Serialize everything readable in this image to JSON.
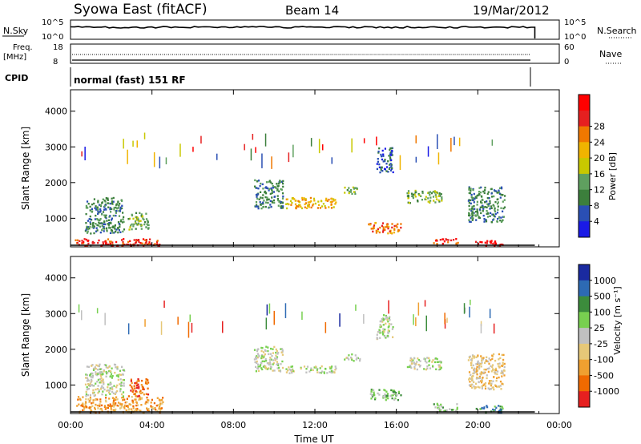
{
  "header": {
    "station": "Syowa East (fitACF)",
    "beam": "Beam 14",
    "date": "19/Mar/2012"
  },
  "top_panels": {
    "nsky_label": "N.Sky",
    "nsearch_label": "N.Search",
    "nsky_ticks": [
      "10^5",
      "10^0"
    ],
    "freq_label": "Freq.",
    "freq_unit": "[MHz]",
    "freq_ticks": [
      "18",
      "8"
    ],
    "nave_label": "Nave",
    "nave_ticks": [
      "60",
      "0"
    ],
    "cpid_label": "CPID",
    "cpid_value": "normal (fast) 151 RF"
  },
  "colors": {
    "power_scale": [
      "#1a1ae6",
      "#2a4fb4",
      "#3c7f3c",
      "#5fa05f",
      "#c8c800",
      "#f0b400",
      "#f07800",
      "#e62020",
      "#ff0000"
    ],
    "velocity_scale": [
      "#1a2aa0",
      "#2d6ab4",
      "#3c8c3c",
      "#78d050",
      "#c0c0c0",
      "#e6c878",
      "#f0a030",
      "#f06a00",
      "#e62020"
    ]
  },
  "chart_data": [
    {
      "type": "heatmap",
      "title": "Power",
      "ylabel": "Slant Range [km]",
      "xlabel": "",
      "x_ticks": [
        "00:00",
        "04:00",
        "08:00",
        "12:00",
        "16:00",
        "20:00",
        "00:00"
      ],
      "y_ticks": [
        1000,
        2000,
        3000,
        4000
      ],
      "ylim": [
        200,
        4600
      ],
      "colorbar": {
        "label": "Power [dB]",
        "unit": "",
        "ticks": [
          4,
          8,
          12,
          16,
          20,
          24,
          28
        ]
      },
      "echo_regions": [
        {
          "t": [
            0.2,
            4.5
          ],
          "r": [
            250,
            450
          ],
          "level": 7
        },
        {
          "t": [
            0.7,
            2.6
          ],
          "r": [
            600,
            1600
          ],
          "level": 2
        },
        {
          "t": [
            2.8,
            3.8
          ],
          "r": [
            700,
            1200
          ],
          "level": 3
        },
        {
          "t": [
            9.0,
            10.4
          ],
          "r": [
            1300,
            2100
          ],
          "level": 2
        },
        {
          "t": [
            10.5,
            13.0
          ],
          "r": [
            1300,
            1600
          ],
          "level": 5
        },
        {
          "t": [
            13.4,
            14.2
          ],
          "r": [
            1700,
            1900
          ],
          "level": 3
        },
        {
          "t": [
            14.6,
            16.2
          ],
          "r": [
            600,
            900
          ],
          "level": 6
        },
        {
          "t": [
            16.5,
            18.2
          ],
          "r": [
            1450,
            1800
          ],
          "level": 3
        },
        {
          "t": [
            17.8,
            19.0
          ],
          "r": [
            300,
            450
          ],
          "level": 7
        },
        {
          "t": [
            19.8,
            21.2
          ],
          "r": [
            250,
            400
          ],
          "level": 8
        },
        {
          "t": [
            19.5,
            21.3
          ],
          "r": [
            900,
            1900
          ],
          "level": 2
        },
        {
          "t": [
            15.0,
            15.8
          ],
          "r": [
            2300,
            3000
          ],
          "level": 1
        }
      ]
    },
    {
      "type": "heatmap",
      "title": "Velocity",
      "ylabel": "Slant Range [km]",
      "xlabel": "Time UT",
      "x_ticks": [
        "00:00",
        "04:00",
        "08:00",
        "12:00",
        "16:00",
        "20:00",
        "00:00"
      ],
      "y_ticks": [
        1000,
        2000,
        3000,
        4000
      ],
      "ylim": [
        200,
        4600
      ],
      "colorbar": {
        "label": "Velocity",
        "unit": "[m s⁻¹]",
        "ticks": [
          1000,
          500,
          100,
          25,
          -25,
          -100,
          -500,
          -1000
        ]
      },
      "echo_regions": [
        {
          "t": [
            0.2,
            4.5
          ],
          "r": [
            250,
            700
          ],
          "level": 6
        },
        {
          "t": [
            0.7,
            2.6
          ],
          "r": [
            700,
            1600
          ],
          "level": 4
        },
        {
          "t": [
            2.8,
            3.8
          ],
          "r": [
            700,
            1200
          ],
          "level": 7
        },
        {
          "t": [
            9.0,
            10.4
          ],
          "r": [
            1400,
            2100
          ],
          "level": 4
        },
        {
          "t": [
            10.5,
            13.0
          ],
          "r": [
            1350,
            1550
          ],
          "level": 4
        },
        {
          "t": [
            13.4,
            14.2
          ],
          "r": [
            1700,
            1900
          ],
          "level": 4
        },
        {
          "t": [
            14.6,
            16.2
          ],
          "r": [
            600,
            900
          ],
          "level": 3
        },
        {
          "t": [
            16.5,
            18.2
          ],
          "r": [
            1450,
            1800
          ],
          "level": 4
        },
        {
          "t": [
            17.8,
            19.0
          ],
          "r": [
            300,
            500
          ],
          "level": 3
        },
        {
          "t": [
            19.8,
            21.2
          ],
          "r": [
            250,
            450
          ],
          "level": 2
        },
        {
          "t": [
            19.5,
            21.3
          ],
          "r": [
            900,
            1900
          ],
          "level": 5
        },
        {
          "t": [
            15.0,
            15.8
          ],
          "r": [
            2300,
            3000
          ],
          "level": 4
        }
      ]
    }
  ]
}
